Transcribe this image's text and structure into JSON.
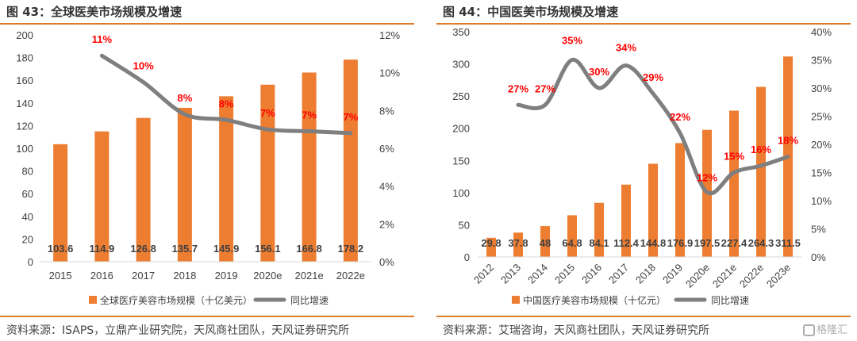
{
  "left": {
    "title": "图 43：全球医美市场规模及增速",
    "source": "资料来源：ISAPS，立鼎产业研究院，天风商社团队，天风证券研究所",
    "legend": {
      "bar_label": "全球医疗美容市场规模（十亿美元）",
      "line_label": "同比增速"
    },
    "y_left_ticks": [
      "0",
      "20",
      "40",
      "60",
      "80",
      "100",
      "120",
      "140",
      "160",
      "180",
      "200"
    ],
    "y_right_ticks": [
      "0%",
      "2%",
      "4%",
      "6%",
      "8%",
      "10%",
      "12%"
    ],
    "bar_value_labels": [
      "103.6",
      "114.9",
      "126.8",
      "135.7",
      "145.9",
      "156.1",
      "166.8",
      "178.2"
    ],
    "growth_labels": [
      "11%",
      "10%",
      "8%",
      "8%",
      "7%",
      "7%",
      "7%"
    ]
  },
  "right": {
    "title": "图 44：中国医美市场规模及增速",
    "source": "资料来源：艾瑞咨询，天风商社团队，天风证券研究所",
    "legend": {
      "bar_label": "中国医疗美容市场规模（十亿元）",
      "line_label": "同比增速"
    },
    "y_left_ticks": [
      "0",
      "50",
      "100",
      "150",
      "200",
      "250",
      "300",
      "350"
    ],
    "y_right_ticks": [
      "0%",
      "5%",
      "10%",
      "15%",
      "20%",
      "25%",
      "30%",
      "35%",
      "40%"
    ],
    "bar_value_labels": [
      "29.8",
      "37.8",
      "48",
      "64.8",
      "84.1",
      "112.4",
      "144.8",
      "176.9",
      "197.5",
      "227.4",
      "264.3",
      "311.5"
    ],
    "growth_labels": [
      "27%",
      "27%",
      "35%",
      "30%",
      "34%",
      "29%",
      "22%",
      "12%",
      "15%",
      "16%",
      "18%"
    ]
  },
  "watermark": "格隆汇",
  "colors": {
    "bar": "#ed7d31",
    "line": "#7f7f7f",
    "growth_label": "#ff0000",
    "rule": "#e07b2a"
  },
  "chart_data": [
    {
      "type": "bar",
      "title": "全球医美市场规模及增速",
      "categories": [
        "2015",
        "2016",
        "2017",
        "2018",
        "2019",
        "2020e",
        "2021e",
        "2022e"
      ],
      "series": [
        {
          "name": "全球医疗美容市场规模（十亿美元）",
          "type": "bar",
          "axis": "left",
          "values": [
            103.6,
            114.9,
            126.8,
            135.7,
            145.9,
            156.1,
            166.8,
            178.2
          ]
        },
        {
          "name": "同比增速",
          "type": "line",
          "axis": "right",
          "values": [
            null,
            0.109,
            0.095,
            0.078,
            0.075,
            0.07,
            0.069,
            0.068
          ]
        }
      ],
      "ylim_left": [
        0,
        200
      ],
      "ylim_right": [
        0,
        0.12
      ],
      "grid": false,
      "legend": "bottom"
    },
    {
      "type": "bar",
      "title": "中国医美市场规模及增速",
      "categories": [
        "2012",
        "2013",
        "2014",
        "2015",
        "2016",
        "2017",
        "2018",
        "2019",
        "2020e",
        "2021e",
        "2022e",
        "2023e"
      ],
      "series": [
        {
          "name": "中国医疗美容市场规模（十亿元）",
          "type": "bar",
          "axis": "left",
          "values": [
            29.8,
            37.8,
            48,
            64.8,
            84.1,
            112.4,
            144.8,
            176.9,
            197.5,
            227.4,
            264.3,
            311.5
          ]
        },
        {
          "name": "同比增速",
          "type": "line",
          "axis": "right",
          "values": [
            null,
            0.27,
            0.27,
            0.35,
            0.3,
            0.34,
            0.29,
            0.22,
            0.115,
            0.15,
            0.162,
            0.178
          ]
        }
      ],
      "ylim_left": [
        0,
        350
      ],
      "ylim_right": [
        0,
        0.4
      ],
      "grid": false,
      "legend": "bottom"
    }
  ]
}
